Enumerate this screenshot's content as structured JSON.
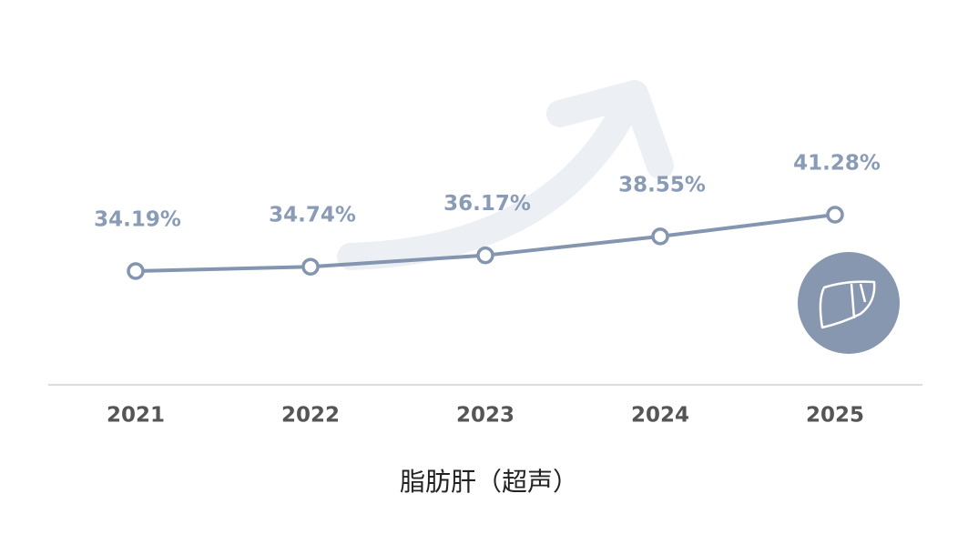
{
  "chart_data": {
    "type": "line",
    "title": "脂肪肝（超声）",
    "categories": [
      "2021",
      "2022",
      "2023",
      "2024",
      "2025"
    ],
    "values": [
      34.19,
      34.74,
      36.17,
      38.55,
      41.28
    ],
    "value_labels": [
      "34.19%",
      "34.74%",
      "36.17%",
      "38.55%",
      "41.28%"
    ],
    "color": "#8495af"
  }
}
